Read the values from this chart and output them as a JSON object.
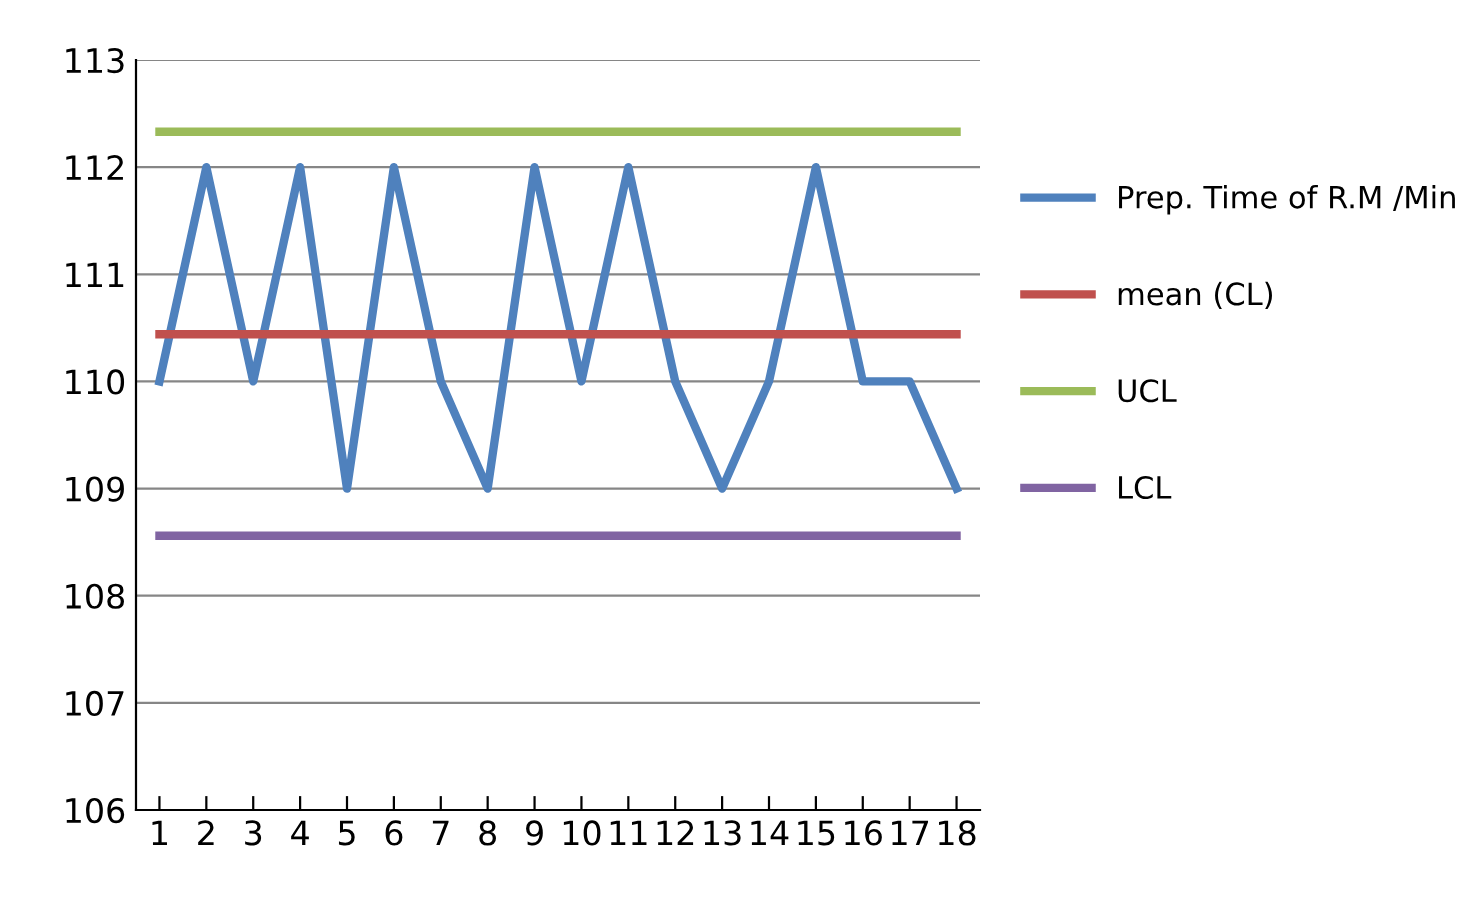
{
  "chart_data": {
    "type": "line",
    "categories": [
      "1",
      "2",
      "3",
      "4",
      "5",
      "6",
      "7",
      "8",
      "9",
      "10",
      "11",
      "12",
      "13",
      "14",
      "15",
      "16",
      "17",
      "18"
    ],
    "series": [
      {
        "name": "Prep. Time of R.M /Min",
        "color": "#4f81bd",
        "values": [
          110,
          112,
          110,
          112,
          109,
          112,
          110,
          109,
          112,
          110,
          112,
          110,
          109,
          110,
          112,
          110,
          110,
          109
        ]
      },
      {
        "name": "mean (CL)",
        "color": "#c0504d",
        "values": [
          110.44,
          110.44,
          110.44,
          110.44,
          110.44,
          110.44,
          110.44,
          110.44,
          110.44,
          110.44,
          110.44,
          110.44,
          110.44,
          110.44,
          110.44,
          110.44,
          110.44,
          110.44
        ]
      },
      {
        "name": "UCL",
        "color": "#9bbb59",
        "values": [
          112.33,
          112.33,
          112.33,
          112.33,
          112.33,
          112.33,
          112.33,
          112.33,
          112.33,
          112.33,
          112.33,
          112.33,
          112.33,
          112.33,
          112.33,
          112.33,
          112.33,
          112.33
        ]
      },
      {
        "name": "LCL",
        "color": "#8064a2",
        "values": [
          108.56,
          108.56,
          108.56,
          108.56,
          108.56,
          108.56,
          108.56,
          108.56,
          108.56,
          108.56,
          108.56,
          108.56,
          108.56,
          108.56,
          108.56,
          108.56,
          108.56,
          108.56
        ]
      }
    ],
    "ylim": [
      106,
      113
    ],
    "yticks": [
      106,
      107,
      108,
      109,
      110,
      111,
      112,
      113
    ],
    "grid": "y",
    "legend": "right",
    "marker": "none",
    "line_style": "solid"
  }
}
